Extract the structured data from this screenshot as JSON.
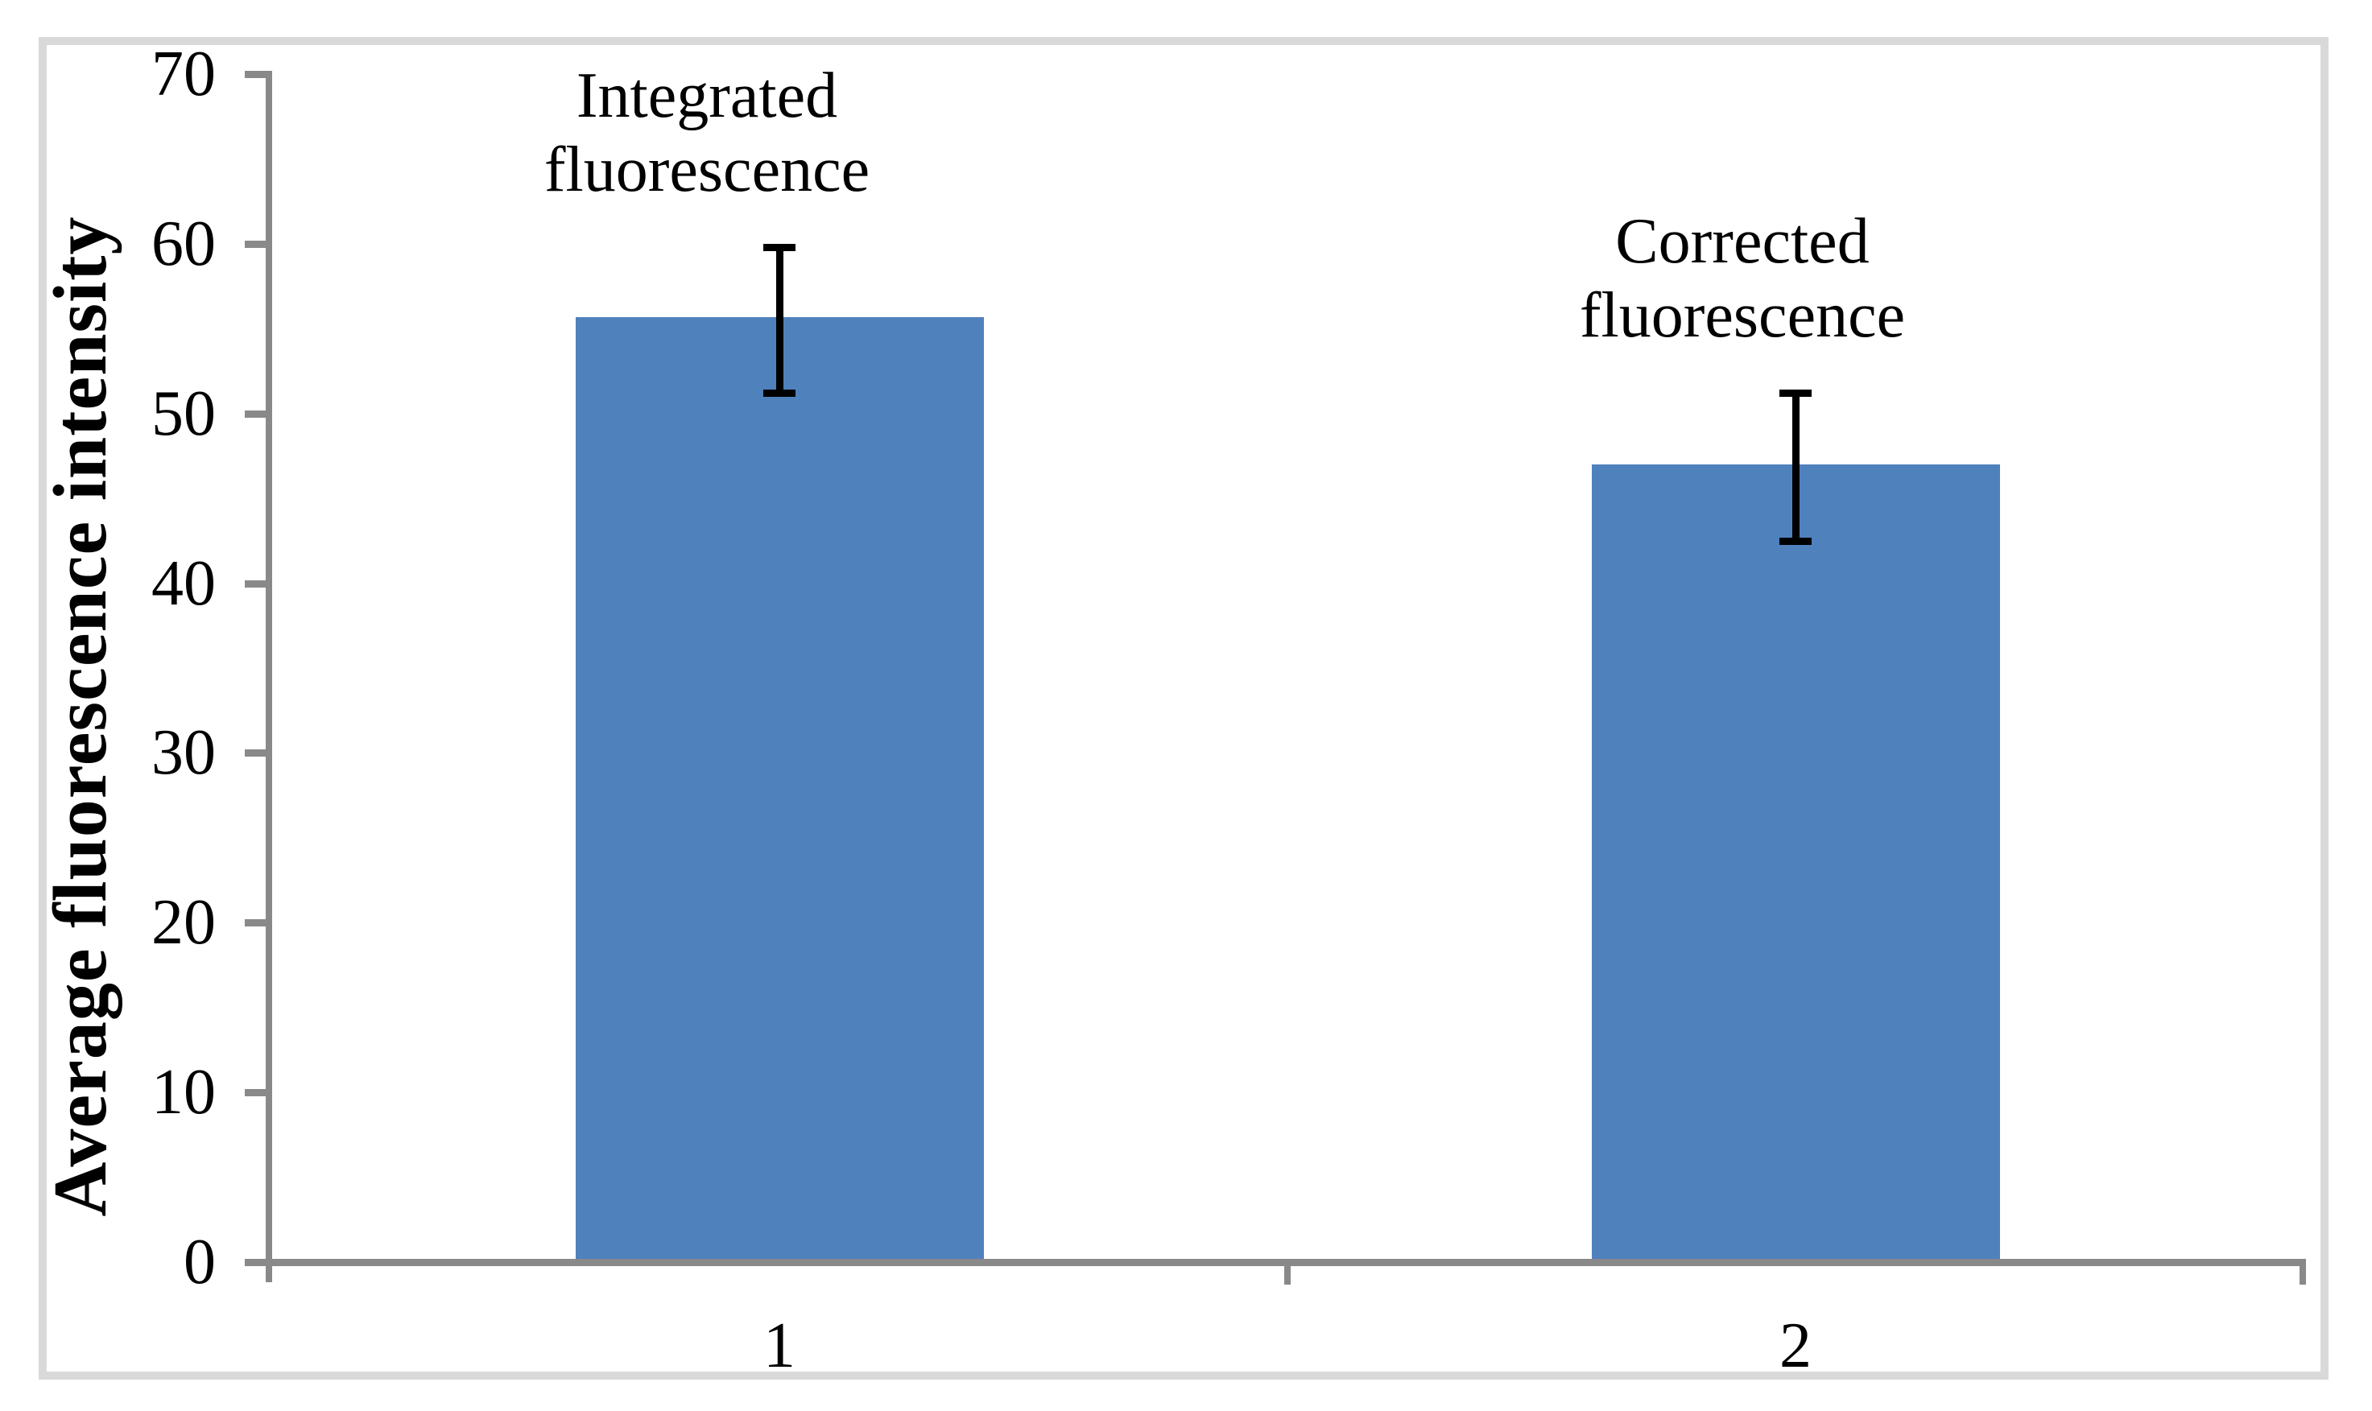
{
  "chart_data": {
    "type": "bar",
    "title": "",
    "ylabel": "Average fluorescence intensity",
    "xlabel": "",
    "ylim": [
      0,
      70
    ],
    "yticks": [
      0,
      10,
      20,
      30,
      40,
      50,
      60,
      70
    ],
    "categories": [
      "1",
      "2"
    ],
    "series": [
      {
        "name": "Average fluorescence intensity",
        "values": [
          55.7,
          47.0
        ],
        "error_bars": [
          {
            "high": 59.8,
            "low": 51.2
          },
          {
            "high": 51.2,
            "low": 42.5
          }
        ],
        "point_labels": [
          "Integrated fluorescence",
          "Corrected fluorescence"
        ]
      }
    ],
    "legend": "none",
    "grid": false,
    "colors": {
      "bar": "#4F81BD",
      "axis": "#898989",
      "error_bar": "#000000",
      "text": "#000000",
      "frame_border": "#D9D9D9",
      "background": "#FFFFFF"
    }
  }
}
